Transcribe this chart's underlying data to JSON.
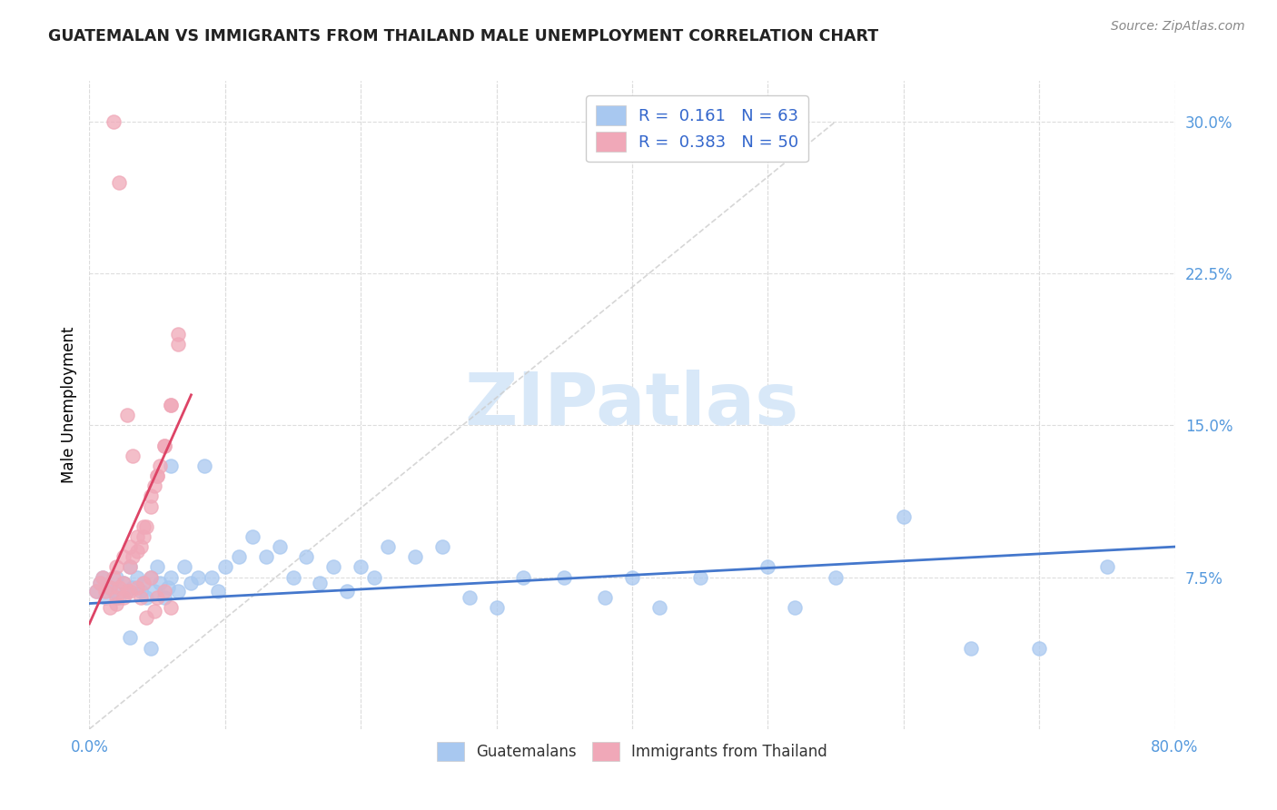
{
  "title": "GUATEMALAN VS IMMIGRANTS FROM THAILAND MALE UNEMPLOYMENT CORRELATION CHART",
  "source": "Source: ZipAtlas.com",
  "ylabel": "Male Unemployment",
  "xlim": [
    0.0,
    0.8
  ],
  "ylim": [
    0.0,
    0.32
  ],
  "blue_color": "#a8c8f0",
  "pink_color": "#f0a8b8",
  "trend_blue": "#4477cc",
  "trend_pink": "#dd4466",
  "trend_diag_color": "#cccccc",
  "watermark": "ZIPatlas",
  "watermark_color": "#d8e8f8",
  "grid_color": "#dddddd",
  "tick_color": "#5599dd",
  "title_color": "#222222",
  "source_color": "#888888",
  "blue_scatter_x": [
    0.005,
    0.008,
    0.01,
    0.012,
    0.015,
    0.018,
    0.02,
    0.022,
    0.025,
    0.028,
    0.03,
    0.032,
    0.035,
    0.038,
    0.04,
    0.042,
    0.045,
    0.048,
    0.05,
    0.052,
    0.055,
    0.058,
    0.06,
    0.065,
    0.07,
    0.075,
    0.08,
    0.085,
    0.09,
    0.095,
    0.1,
    0.11,
    0.12,
    0.13,
    0.14,
    0.15,
    0.16,
    0.17,
    0.18,
    0.19,
    0.2,
    0.21,
    0.22,
    0.24,
    0.26,
    0.28,
    0.3,
    0.32,
    0.35,
    0.38,
    0.4,
    0.42,
    0.45,
    0.5,
    0.52,
    0.55,
    0.6,
    0.65,
    0.7,
    0.75,
    0.03,
    0.045,
    0.06
  ],
  "blue_scatter_y": [
    0.068,
    0.072,
    0.075,
    0.065,
    0.07,
    0.068,
    0.075,
    0.065,
    0.072,
    0.068,
    0.08,
    0.07,
    0.075,
    0.068,
    0.072,
    0.065,
    0.075,
    0.068,
    0.08,
    0.072,
    0.065,
    0.07,
    0.075,
    0.068,
    0.08,
    0.072,
    0.075,
    0.13,
    0.075,
    0.068,
    0.08,
    0.085,
    0.095,
    0.085,
    0.09,
    0.075,
    0.085,
    0.072,
    0.08,
    0.068,
    0.08,
    0.075,
    0.09,
    0.085,
    0.09,
    0.065,
    0.06,
    0.075,
    0.075,
    0.065,
    0.075,
    0.06,
    0.075,
    0.08,
    0.06,
    0.075,
    0.105,
    0.04,
    0.04,
    0.08,
    0.045,
    0.04,
    0.13
  ],
  "pink_scatter_x": [
    0.005,
    0.008,
    0.01,
    0.012,
    0.015,
    0.018,
    0.02,
    0.022,
    0.025,
    0.028,
    0.03,
    0.032,
    0.035,
    0.038,
    0.04,
    0.042,
    0.045,
    0.048,
    0.05,
    0.052,
    0.055,
    0.06,
    0.065,
    0.02,
    0.025,
    0.03,
    0.035,
    0.04,
    0.045,
    0.05,
    0.055,
    0.06,
    0.065,
    0.015,
    0.02,
    0.025,
    0.03,
    0.035,
    0.04,
    0.045,
    0.05,
    0.055,
    0.06,
    0.018,
    0.022,
    0.028,
    0.032,
    0.038,
    0.042,
    0.048
  ],
  "pink_scatter_y": [
    0.068,
    0.072,
    0.075,
    0.068,
    0.07,
    0.075,
    0.065,
    0.07,
    0.072,
    0.068,
    0.08,
    0.085,
    0.088,
    0.09,
    0.095,
    0.1,
    0.11,
    0.12,
    0.125,
    0.13,
    0.14,
    0.16,
    0.19,
    0.08,
    0.085,
    0.09,
    0.095,
    0.1,
    0.115,
    0.125,
    0.14,
    0.16,
    0.195,
    0.06,
    0.062,
    0.065,
    0.068,
    0.07,
    0.072,
    0.075,
    0.065,
    0.068,
    0.06,
    0.3,
    0.27,
    0.155,
    0.135,
    0.065,
    0.055,
    0.058
  ],
  "blue_trend_x0": 0.0,
  "blue_trend_x1": 0.8,
  "blue_trend_y0": 0.062,
  "blue_trend_y1": 0.09,
  "pink_trend_x0": 0.0,
  "pink_trend_x1": 0.075,
  "pink_trend_y0": 0.052,
  "pink_trend_y1": 0.165
}
